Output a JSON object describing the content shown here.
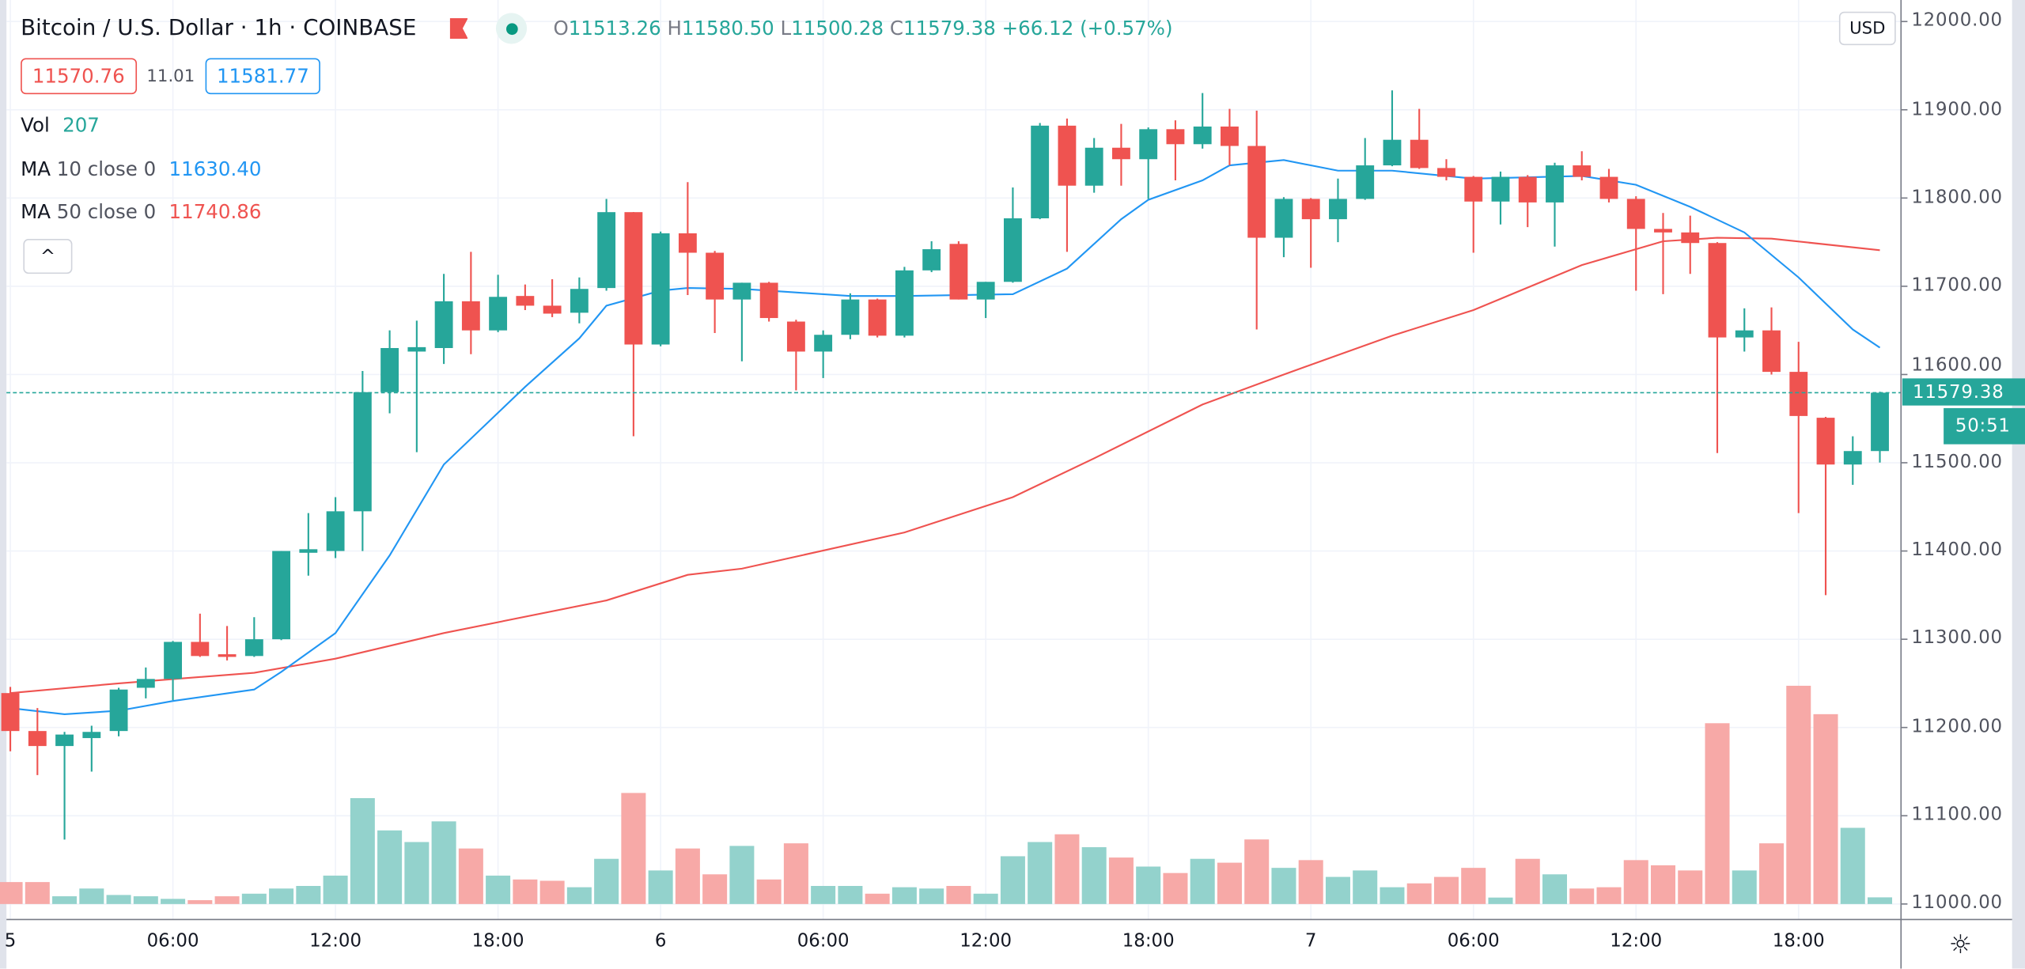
{
  "header": {
    "title": "Bitcoin / U.S. Dollar · 1h · COINBASE",
    "ohlc": {
      "o_label": "O",
      "o": "11513.26",
      "h_label": "H",
      "h": "11580.50",
      "l_label": "L",
      "l": "11500.28",
      "c_label": "C",
      "c": "11579.38",
      "change": "+66.12 (+0.57%)"
    },
    "icons": {
      "flag": "flag-icon",
      "live": "market-open-dot-icon"
    }
  },
  "quote": {
    "sell": "11570.76",
    "spread": "11.01",
    "buy": "11581.77"
  },
  "indicators": {
    "vol": {
      "label": "Vol",
      "value": "207"
    },
    "ma10": {
      "label": "MA",
      "params": "10 close 0",
      "value": "11630.40"
    },
    "ma50": {
      "label": "MA",
      "params": "50 close 0",
      "value": "11740.86"
    },
    "collapse_label": "^"
  },
  "axis": {
    "currency": "USD",
    "price_labels": [
      "12000.00",
      "11900.00",
      "11800.00",
      "11700.00",
      "11600.00",
      "11500.00",
      "11400.00",
      "11300.00",
      "11200.00",
      "11100.00",
      "11000.00"
    ],
    "last_price": "11579.38",
    "countdown": "50:51",
    "settings_icon": "gear-icon"
  },
  "colors": {
    "up": "#26a69a",
    "down": "#ef5350",
    "up_vol": "#93d2cc",
    "down_vol": "#f7a9a7",
    "ma10": "#2196f3",
    "ma50": "#ef5350",
    "grid": "#f0f3fa"
  },
  "chart_data": {
    "type": "candlestick",
    "interval": "1h",
    "ylim": [
      11000,
      12000
    ],
    "time_labels": [
      {
        "i": 0,
        "label": "5"
      },
      {
        "i": 6,
        "label": "06:00"
      },
      {
        "i": 12,
        "label": "12:00"
      },
      {
        "i": 18,
        "label": "18:00"
      },
      {
        "i": 24,
        "label": "6"
      },
      {
        "i": 30,
        "label": "06:00"
      },
      {
        "i": 36,
        "label": "12:00"
      },
      {
        "i": 42,
        "label": "18:00"
      },
      {
        "i": 48,
        "label": "7"
      },
      {
        "i": 54,
        "label": "06:00"
      },
      {
        "i": 60,
        "label": "12:00"
      },
      {
        "i": 66,
        "label": "18:00"
      }
    ],
    "ohlc": [
      [
        11239,
        11246,
        11173,
        11196
      ],
      [
        11196,
        11222,
        11146,
        11179
      ],
      [
        11179,
        11195,
        11073,
        11192
      ],
      [
        11188,
        11202,
        11150,
        11195
      ],
      [
        11196,
        11245,
        11190,
        11243
      ],
      [
        11245,
        11268,
        11233,
        11255
      ],
      [
        11255,
        11298,
        11231,
        11297
      ],
      [
        11297,
        11329,
        11280,
        11281
      ],
      [
        11283,
        11315,
        11276,
        11280
      ],
      [
        11281,
        11325,
        11280,
        11300
      ],
      [
        11300,
        11400,
        11299,
        11400
      ],
      [
        11398,
        11443,
        11372,
        11402
      ],
      [
        11400,
        11461,
        11392,
        11445
      ],
      [
        11445,
        11604,
        11400,
        11580
      ],
      [
        11580,
        11650,
        11556,
        11630
      ],
      [
        11626,
        11661,
        11512,
        11631
      ],
      [
        11630,
        11714,
        11612,
        11683
      ],
      [
        11683,
        11739,
        11623,
        11650
      ],
      [
        11650,
        11713,
        11648,
        11688
      ],
      [
        11689,
        11702,
        11673,
        11678
      ],
      [
        11678,
        11708,
        11665,
        11669
      ],
      [
        11670,
        11710,
        11658,
        11697
      ],
      [
        11698,
        11799,
        11695,
        11784
      ],
      [
        11784,
        11784,
        11530,
        11634
      ],
      [
        11634,
        11762,
        11632,
        11760
      ],
      [
        11760,
        11818,
        11690,
        11738
      ],
      [
        11738,
        11740,
        11647,
        11685
      ],
      [
        11685,
        11704,
        11615,
        11704
      ],
      [
        11704,
        11705,
        11660,
        11664
      ],
      [
        11660,
        11662,
        11582,
        11626
      ],
      [
        11626,
        11650,
        11596,
        11645
      ],
      [
        11645,
        11692,
        11640,
        11685
      ],
      [
        11685,
        11686,
        11642,
        11644
      ],
      [
        11644,
        11722,
        11642,
        11718
      ],
      [
        11718,
        11751,
        11716,
        11742
      ],
      [
        11748,
        11751,
        11685,
        11685
      ],
      [
        11685,
        11705,
        11664,
        11705
      ],
      [
        11705,
        11812,
        11704,
        11777
      ],
      [
        11777,
        11885,
        11776,
        11882
      ],
      [
        11882,
        11890,
        11739,
        11814
      ],
      [
        11814,
        11868,
        11806,
        11857
      ],
      [
        11857,
        11884,
        11814,
        11844
      ],
      [
        11844,
        11880,
        11799,
        11878
      ],
      [
        11878,
        11888,
        11820,
        11861
      ],
      [
        11861,
        11919,
        11856,
        11881
      ],
      [
        11881,
        11901,
        11837,
        11859
      ],
      [
        11859,
        11899,
        11651,
        11755
      ],
      [
        11755,
        11801,
        11733,
        11799
      ],
      [
        11799,
        11800,
        11721,
        11776
      ],
      [
        11776,
        11822,
        11750,
        11799
      ],
      [
        11799,
        11868,
        11798,
        11837
      ],
      [
        11837,
        11922,
        11836,
        11866
      ],
      [
        11866,
        11901,
        11833,
        11834
      ],
      [
        11834,
        11844,
        11820,
        11824
      ],
      [
        11824,
        11825,
        11738,
        11796
      ],
      [
        11796,
        11830,
        11770,
        11824
      ],
      [
        11824,
        11826,
        11767,
        11795
      ],
      [
        11795,
        11840,
        11745,
        11837
      ],
      [
        11837,
        11853,
        11820,
        11824
      ],
      [
        11824,
        11833,
        11795,
        11799
      ],
      [
        11799,
        11802,
        11695,
        11765
      ],
      [
        11765,
        11783,
        11691,
        11761
      ],
      [
        11761,
        11780,
        11714,
        11749
      ],
      [
        11749,
        11750,
        11511,
        11642
      ],
      [
        11642,
        11675,
        11626,
        11650
      ],
      [
        11650,
        11676,
        11600,
        11603
      ],
      [
        11603,
        11637,
        11443,
        11553
      ],
      [
        11551,
        11552,
        11350,
        11498
      ],
      [
        11498,
        11530,
        11475,
        11513.26
      ],
      [
        11513.26,
        11580.5,
        11500.28,
        11579.38
      ]
    ],
    "volume": [
      680,
      680,
      240,
      480,
      280,
      240,
      160,
      120,
      240,
      320,
      480,
      560,
      880,
      3280,
      2280,
      1920,
      2560,
      1720,
      880,
      760,
      720,
      520,
      1400,
      3440,
      1040,
      1720,
      920,
      1800,
      760,
      1880,
      560,
      560,
      320,
      520,
      480,
      560,
      320,
      1480,
      1920,
      2160,
      1760,
      1440,
      1160,
      960,
      1400,
      1280,
      2000,
      1120,
      1360,
      840,
      1040,
      520,
      640,
      840,
      1120,
      200,
      1400,
      920,
      480,
      520,
      1360,
      1200,
      1040,
      5600,
      1040,
      1880,
      6760,
      5880,
      2360,
      207
    ],
    "ma10": [
      [
        0,
        11222
      ],
      [
        2,
        11215
      ],
      [
        4,
        11219
      ],
      [
        6,
        11230
      ],
      [
        9,
        11243
      ],
      [
        10,
        11263
      ],
      [
        12,
        11307
      ],
      [
        14,
        11395
      ],
      [
        16,
        11498
      ],
      [
        19,
        11586
      ],
      [
        21,
        11641
      ],
      [
        22,
        11678
      ],
      [
        24,
        11695
      ],
      [
        25,
        11698
      ],
      [
        27,
        11697
      ],
      [
        31,
        11689
      ],
      [
        33,
        11689
      ],
      [
        37,
        11691
      ],
      [
        39,
        11720
      ],
      [
        41,
        11776
      ],
      [
        42,
        11798
      ],
      [
        44,
        11820
      ],
      [
        45,
        11837
      ],
      [
        47,
        11843
      ],
      [
        49,
        11831
      ],
      [
        51,
        11831
      ],
      [
        54,
        11822
      ],
      [
        58,
        11825
      ],
      [
        60,
        11815
      ],
      [
        62,
        11790
      ],
      [
        64,
        11761
      ],
      [
        66,
        11710
      ],
      [
        68,
        11651
      ],
      [
        69,
        11630.4
      ]
    ],
    "ma50": [
      [
        0,
        11239
      ],
      [
        4,
        11250
      ],
      [
        9,
        11262
      ],
      [
        12,
        11278
      ],
      [
        16,
        11307
      ],
      [
        22,
        11344
      ],
      [
        25,
        11373
      ],
      [
        27,
        11380
      ],
      [
        33,
        11421
      ],
      [
        37,
        11461
      ],
      [
        40,
        11505
      ],
      [
        44,
        11566
      ],
      [
        47,
        11600
      ],
      [
        49,
        11622
      ],
      [
        51,
        11644
      ],
      [
        54,
        11673
      ],
      [
        58,
        11724
      ],
      [
        61,
        11751
      ],
      [
        63,
        11755
      ],
      [
        65,
        11754
      ],
      [
        69,
        11740.86
      ]
    ]
  }
}
